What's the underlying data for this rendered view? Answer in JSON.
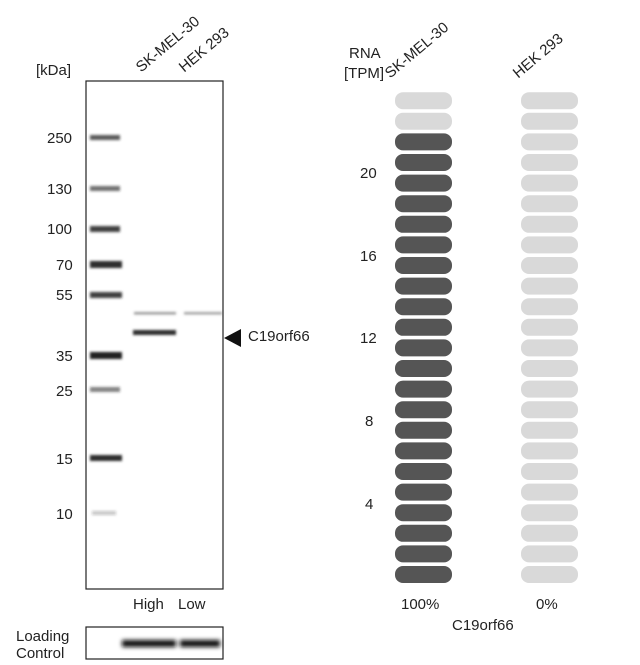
{
  "western_blot": {
    "unit_label": "[kDa]",
    "lane_labels": [
      "SK-MEL-30",
      "HEK 293"
    ],
    "markers": [
      "250",
      "130",
      "100",
      "70",
      "55",
      "35",
      "25",
      "15",
      "10"
    ],
    "target_label": "C19orf66",
    "exposure_labels": [
      "High",
      "Low"
    ],
    "loading_control_label": [
      "Loading",
      "Control"
    ]
  },
  "rna_panel": {
    "header_line1": "RNA",
    "header_line2": "[TPM]",
    "cell_lines": [
      "SK-MEL-30",
      "HEK 293"
    ],
    "y_ticks": [
      "20",
      "16",
      "12",
      "8",
      "4"
    ],
    "percentages": [
      "100%",
      "0%"
    ],
    "gene_label": "C19orf66",
    "colors": {
      "filled": "#555555",
      "empty": "#d9d9d9"
    }
  },
  "chart_data": {
    "type": "bar",
    "categories": [
      "SK-MEL-30",
      "HEK 293"
    ],
    "ylabel": "RNA [TPM]",
    "xlabel": "C19orf66",
    "y_ticks": [
      4,
      8,
      12,
      16,
      20
    ],
    "scale_segments": 24,
    "values": [
      22,
      0
    ],
    "percent_labels": [
      "100%",
      "0%"
    ]
  }
}
